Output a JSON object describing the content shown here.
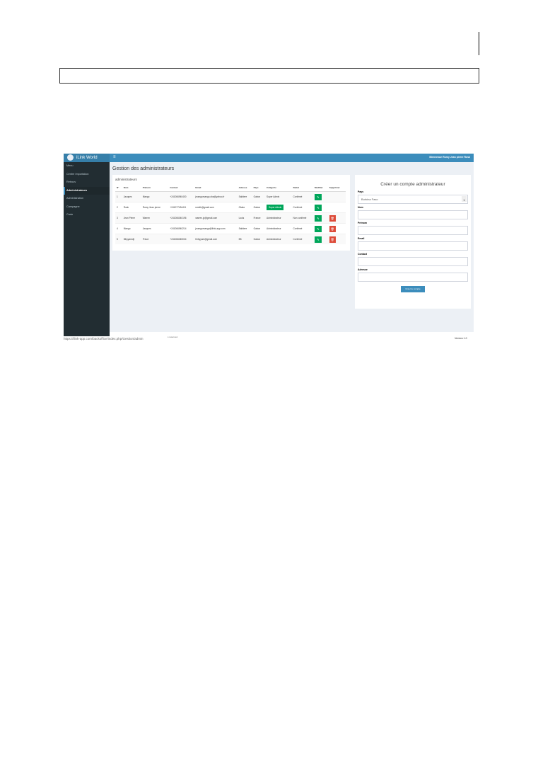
{
  "app": {
    "brand": "iLink World",
    "welcome": "Bienvenue Rumy Jean pierre Rosk"
  },
  "sidebar": {
    "items": [
      "Menu",
      "Centre Importation",
      "Retrouv",
      "Administrateurs",
      "Administration",
      "Campagne",
      "Carte"
    ],
    "active": 3
  },
  "page": {
    "title": "Gestion des administrateurs"
  },
  "table": {
    "heading": "administrateurs",
    "columns": [
      "N°",
      "Nom",
      "Prénom",
      "Contact",
      "Email",
      "Adresse",
      "Pays",
      "Catégorie",
      "Statut",
      "Modifier",
      "Supprimer"
    ],
    "rows": [
      [
        "1",
        "Jacques",
        "Mango",
        "+241066940400",
        "jmangomango.cba@yahoo.fr",
        "Sabliere",
        "Gabon",
        "Super Admin",
        "Confirmé"
      ],
      [
        "2",
        "Rosk",
        "Rumy Jean pierre",
        "+241077434411",
        "roskth@gmail.com",
        "Okala",
        "Gabon",
        "Super Admin",
        "Confirmé"
      ],
      [
        "3",
        "Jean Pierre",
        "Warren",
        "+241066040196",
        "warren.jp@gmail.com",
        "Louis",
        "France",
        "Administrateur",
        "Non confirmé"
      ],
      [
        "4",
        "Mango",
        "Jacques",
        "+241066940214",
        "jmangomango@ilink-app.com",
        "Sabliere",
        "Gabon",
        "Administrateur",
        "Confirmé"
      ],
      [
        "5",
        "Mbyyamdji",
        "Freud",
        "+241066345034",
        "fmbyyam@gmail.com",
        "BK",
        "Gabon",
        "Administrateur",
        "Confirmé"
      ]
    ],
    "badge_row": 1,
    "deletable": [
      false,
      false,
      true,
      true,
      true
    ]
  },
  "form": {
    "title": "Créer un compte administrateur",
    "labels": [
      "Pays",
      "Nom",
      "Prénom",
      "Email",
      "Contact",
      "Adresse"
    ],
    "pays_value": "Burkina Faso",
    "submit": "Créer le compte"
  },
  "footer": {
    "url": "https://ilink-app.com/backoffice/index.php/Gestion/admin",
    "copy": "s reserved.",
    "version": "Version 1.0"
  },
  "colors": {
    "header": "#3c8dbc",
    "sidebar": "#222d32",
    "edit": "#00a65a",
    "delete": "#dd4b39"
  }
}
